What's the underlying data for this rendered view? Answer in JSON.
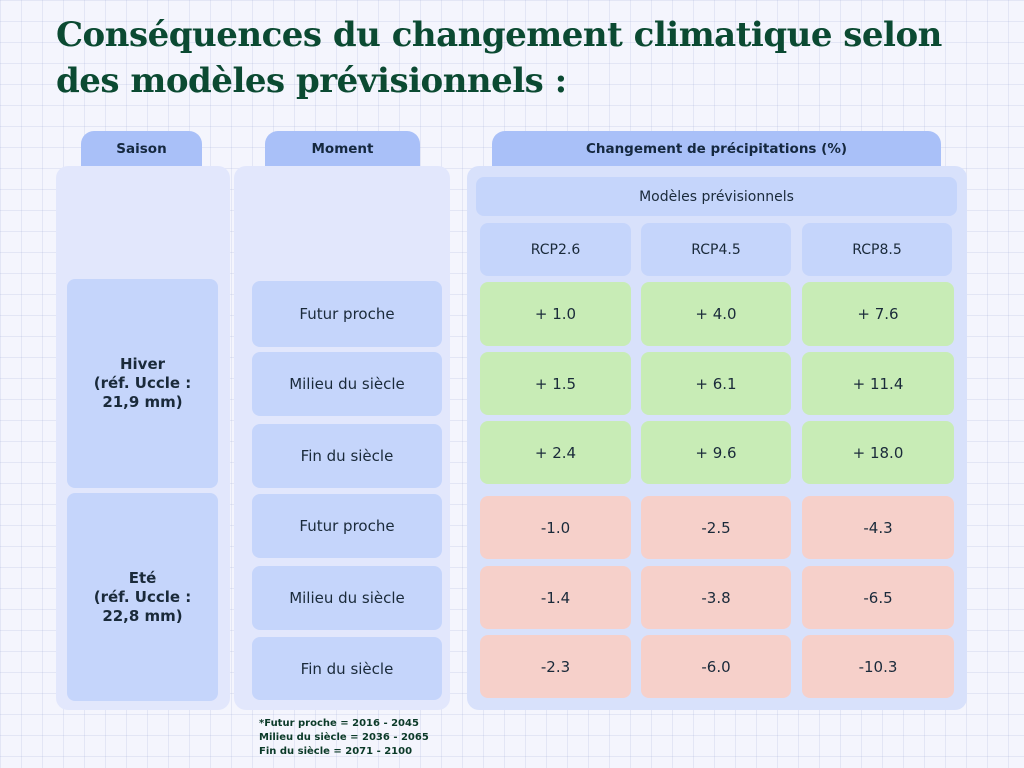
{
  "title": "Conséquences du changement climatique selon des modèles prévisionnels :",
  "headers": {
    "season": "Saison",
    "moment": "Moment",
    "change": "Changement de précipitations (%)"
  },
  "models_label": "Modèles prévisionnels",
  "models": [
    "RCP2.6",
    "RCP4.5",
    "RCP8.5"
  ],
  "seasons": [
    {
      "name": "Hiver",
      "ref": "(réf. Uccle : 21,9 mm)",
      "moments": [
        "Futur proche",
        "Milieu du siècle",
        "Fin du siècle"
      ],
      "values": [
        [
          "+ 1.0",
          "+ 4.0",
          "+ 7.6"
        ],
        [
          "+ 1.5",
          "+ 6.1",
          "+ 11.4"
        ],
        [
          "+ 2.4",
          "+ 9.6",
          "+ 18.0"
        ]
      ]
    },
    {
      "name": "Eté",
      "ref": "(réf. Uccle : 22,8 mm)",
      "moments": [
        "Futur proche",
        "Milieu du siècle",
        "Fin du siècle"
      ],
      "values": [
        [
          "-1.0",
          "-2.5",
          "-4.3"
        ],
        [
          "-1.4",
          "-3.8",
          "-6.5"
        ],
        [
          "-2.3",
          "-6.0",
          "-10.3"
        ]
      ]
    }
  ],
  "footnotes": [
    "*Futur proche = 2016 - 2045",
    "Milieu du siècle = 2036 - 2065",
    "Fin du siècle = 2071 - 2100"
  ],
  "colors": {
    "title": "#0b4a32",
    "header": "#a9c0f8",
    "cell_blue": "#c5d5fb",
    "increase": "#c8ecb6",
    "decrease": "#f6d0ca"
  }
}
